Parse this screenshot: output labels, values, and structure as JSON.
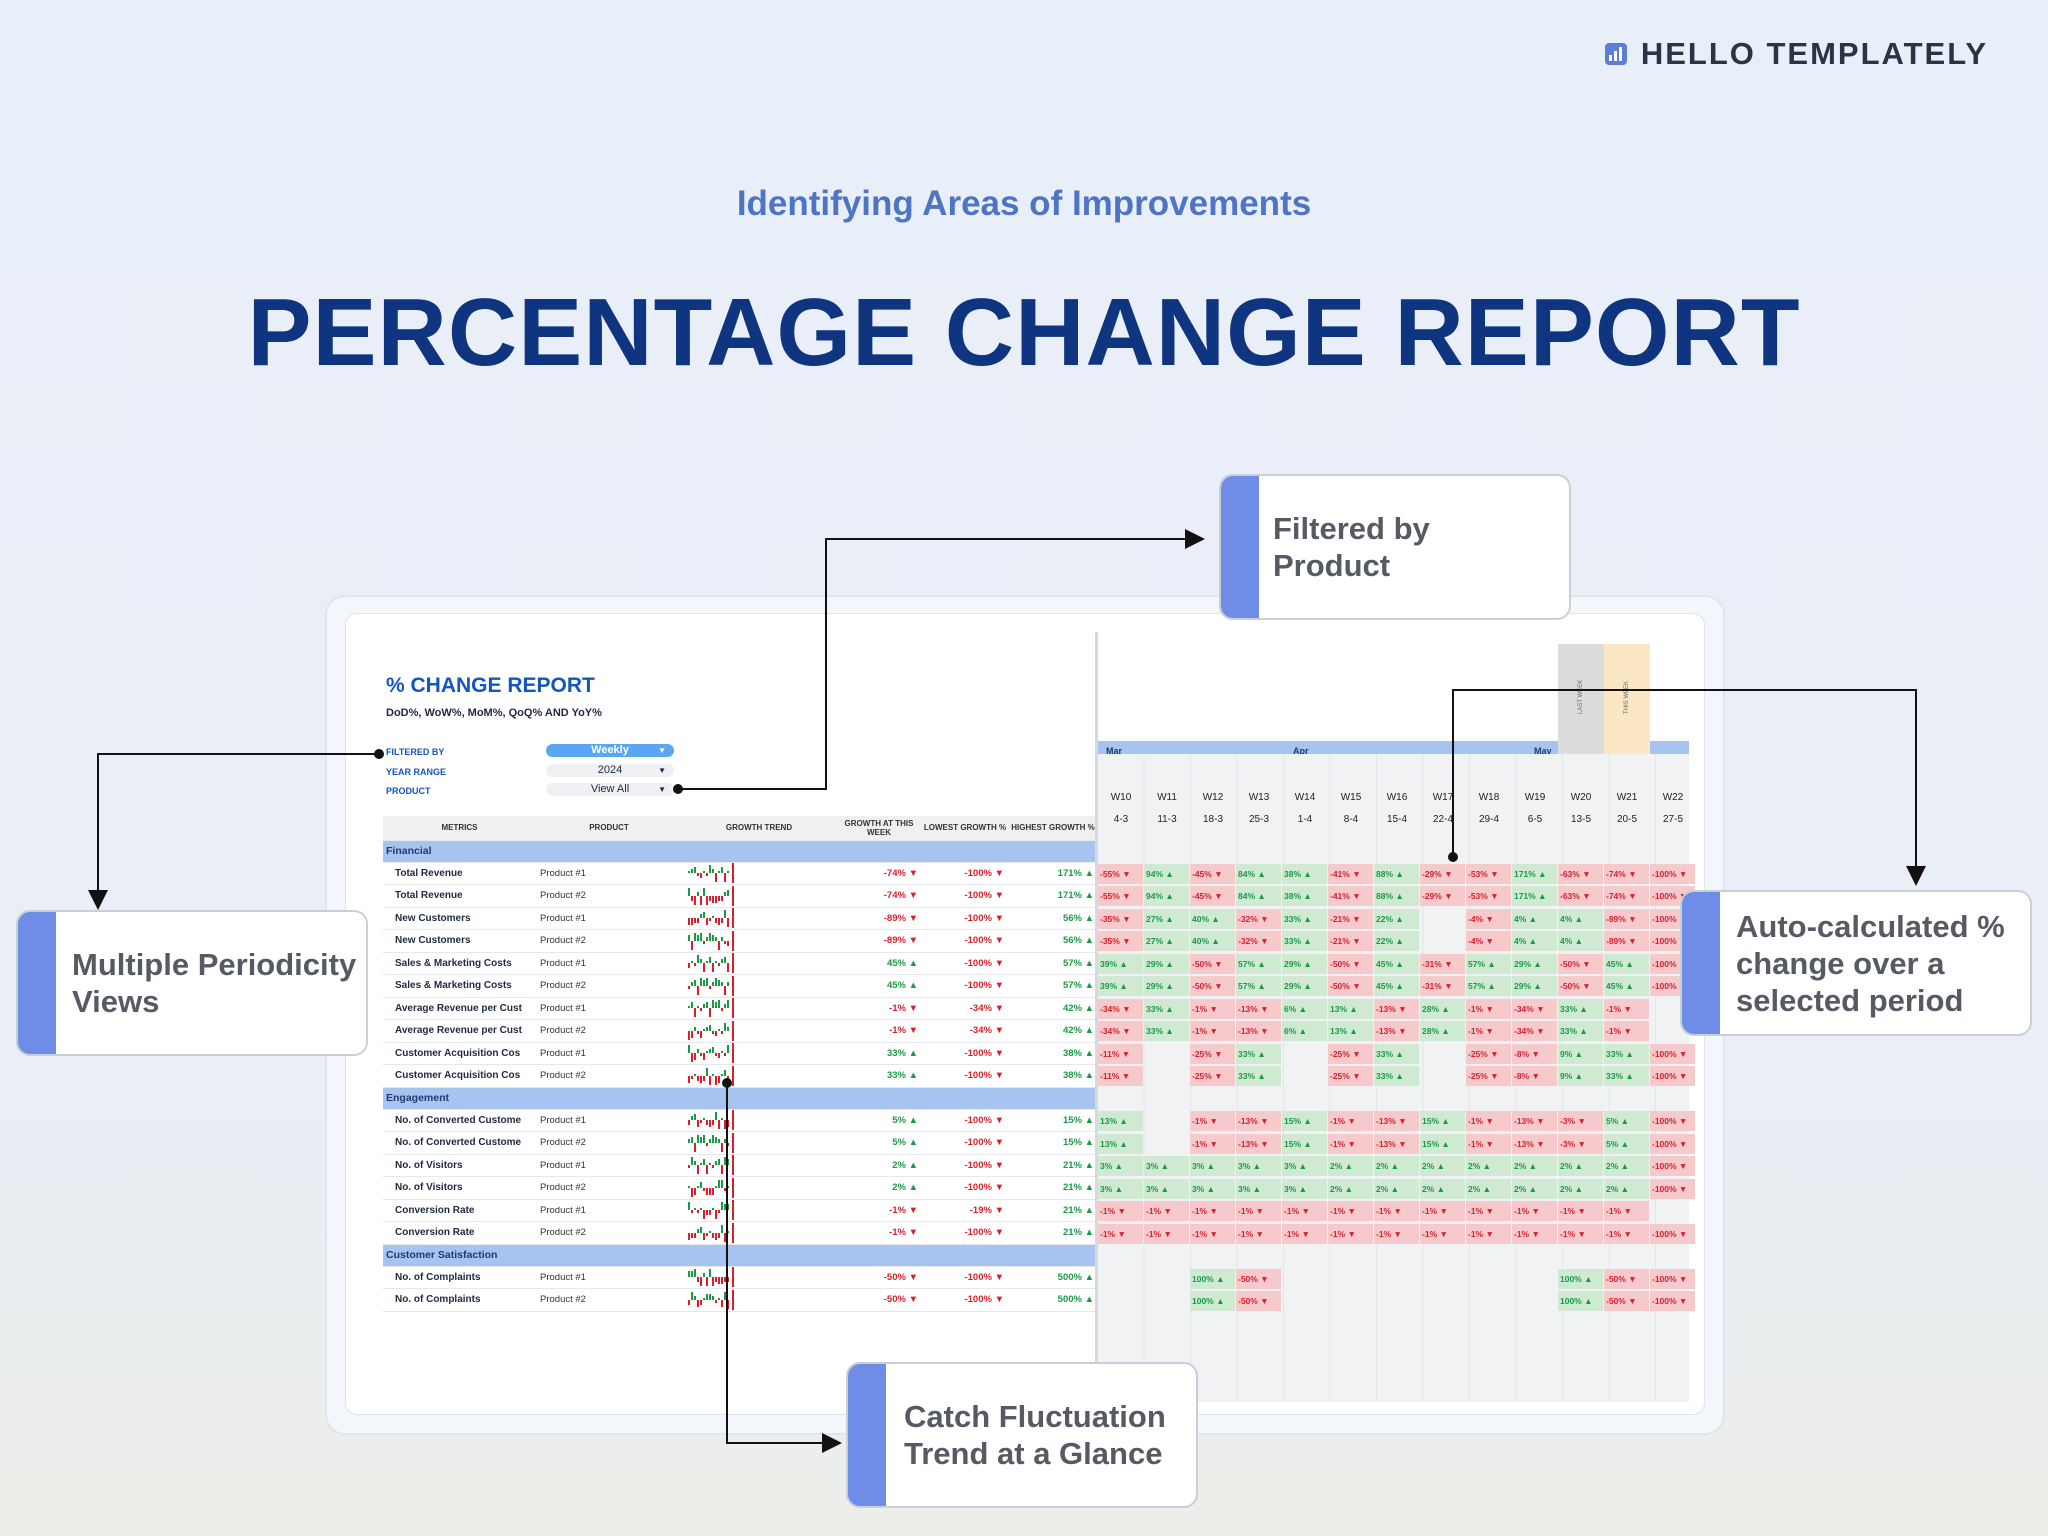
{
  "brand": {
    "name": "HELLO TEMPLATELY",
    "icon": "bar-chart-icon"
  },
  "header": {
    "kicker": "Identifying Areas of Improvements",
    "title": "PERCENTAGE CHANGE REPORT"
  },
  "report": {
    "title": "% CHANGE REPORT",
    "subtitle": "DoD%, WoW%, MoM%, QoQ% AND YoY%",
    "filters": [
      {
        "label": "FILTERED BY",
        "value": "Weekly"
      },
      {
        "label": "YEAR RANGE",
        "value": "2024"
      },
      {
        "label": "PRODUCT",
        "value": "View All"
      }
    ],
    "columns": [
      "METRICS",
      "PRODUCT",
      "GROWTH TREND",
      "GROWTH AT THIS WEEK",
      "LOWEST GROWTH %",
      "HIGHEST GROWTH %"
    ],
    "sections": [
      {
        "name": "Financial",
        "rows": [
          {
            "metric": "Total Revenue",
            "product": "Product #1",
            "now": "-74% ▼",
            "now_dir": "dn",
            "low": "-100% ▼",
            "high": "171% ▲"
          },
          {
            "metric": "Total Revenue",
            "product": "Product #2",
            "now": "-74% ▼",
            "now_dir": "dn",
            "low": "-100% ▼",
            "high": "171% ▲"
          },
          {
            "metric": "New Customers",
            "product": "Product #1",
            "now": "-89% ▼",
            "now_dir": "dn",
            "low": "-100% ▼",
            "high": "56% ▲"
          },
          {
            "metric": "New Customers",
            "product": "Product #2",
            "now": "-89% ▼",
            "now_dir": "dn",
            "low": "-100% ▼",
            "high": "56% ▲"
          },
          {
            "metric": "Sales & Marketing Costs",
            "product": "Product #1",
            "now": "45% ▲",
            "now_dir": "up",
            "low": "-100% ▼",
            "high": "57% ▲"
          },
          {
            "metric": "Sales & Marketing Costs",
            "product": "Product #2",
            "now": "45% ▲",
            "now_dir": "up",
            "low": "-100% ▼",
            "high": "57% ▲"
          },
          {
            "metric": "Average Revenue per Cust",
            "product": "Product #1",
            "now": "-1% ▼",
            "now_dir": "dn",
            "low": "-34% ▼",
            "high": "42% ▲"
          },
          {
            "metric": "Average Revenue per Cust",
            "product": "Product #2",
            "now": "-1% ▼",
            "now_dir": "dn",
            "low": "-34% ▼",
            "high": "42% ▲"
          },
          {
            "metric": "Customer Acquisition Cos",
            "product": "Product #1",
            "now": "33% ▲",
            "now_dir": "up",
            "low": "-100% ▼",
            "high": "38% ▲"
          },
          {
            "metric": "Customer Acquisition Cos",
            "product": "Product #2",
            "now": "33% ▲",
            "now_dir": "up",
            "low": "-100% ▼",
            "high": "38% ▲"
          }
        ]
      },
      {
        "name": "Engagement",
        "rows": [
          {
            "metric": "No. of Converted Custome",
            "product": "Product #1",
            "now": "5% ▲",
            "now_dir": "up",
            "low": "-100% ▼",
            "high": "15% ▲"
          },
          {
            "metric": "No. of Converted Custome",
            "product": "Product #2",
            "now": "5% ▲",
            "now_dir": "up",
            "low": "-100% ▼",
            "high": "15% ▲"
          },
          {
            "metric": "No. of Visitors",
            "product": "Product #1",
            "now": "2% ▲",
            "now_dir": "up",
            "low": "-100% ▼",
            "high": "21% ▲"
          },
          {
            "metric": "No. of Visitors",
            "product": "Product #2",
            "now": "2% ▲",
            "now_dir": "up",
            "low": "-100% ▼",
            "high": "21% ▲"
          },
          {
            "metric": "Conversion Rate",
            "product": "Product #1",
            "now": "-1% ▼",
            "now_dir": "dn",
            "low": "-19% ▼",
            "high": "21% ▲"
          },
          {
            "metric": "Conversion Rate",
            "product": "Product #2",
            "now": "-1% ▼",
            "now_dir": "dn",
            "low": "-100% ▼",
            "high": "21% ▲"
          }
        ]
      },
      {
        "name": "Customer Satisfaction",
        "rows": [
          {
            "metric": "No. of Complaints",
            "product": "Product #1",
            "now": "-50% ▼",
            "now_dir": "dn",
            "low": "-100% ▼",
            "high": "500% ▲"
          },
          {
            "metric": "No. of Complaints",
            "product": "Product #2",
            "now": "-50% ▼",
            "now_dir": "dn",
            "low": "-100% ▼",
            "high": "500% ▲"
          }
        ]
      }
    ],
    "months": [
      "Mar",
      "Apr",
      "May"
    ],
    "weeks": [
      "W10",
      "W11",
      "W12",
      "W13",
      "W14",
      "W15",
      "W16",
      "W17",
      "W18",
      "W19",
      "W20",
      "W21",
      "W22"
    ],
    "dates": [
      "4-3",
      "11-3",
      "18-3",
      "25-3",
      "1-4",
      "8-4",
      "15-4",
      "22-4",
      "29-4",
      "6-5",
      "13-5",
      "20-5",
      "27-5"
    ],
    "week_markers": {
      "last": "LAST WEEK",
      "this": "THIS WEEK"
    },
    "grid_rows": [
      [
        "-55% ▼",
        "94% ▲",
        "-45% ▼",
        "84% ▲",
        "38% ▲",
        "-41% ▼",
        "88% ▲",
        "-29% ▼",
        "-53% ▼",
        "171% ▲",
        "-63% ▼",
        "-74% ▼",
        "-100% ▼"
      ],
      [
        "-55% ▼",
        "94% ▲",
        "-45% ▼",
        "84% ▲",
        "38% ▲",
        "-41% ▼",
        "88% ▲",
        "-29% ▼",
        "-53% ▼",
        "171% ▲",
        "-63% ▼",
        "-74% ▼",
        "-100% ▼"
      ],
      [
        "-35% ▼",
        "27% ▲",
        "40% ▲",
        "-32% ▼",
        "33% ▲",
        "-21% ▼",
        "22% ▲",
        "",
        "-4% ▼",
        "4% ▲",
        "4% ▲",
        "-89% ▼",
        "-100% ▼"
      ],
      [
        "-35% ▼",
        "27% ▲",
        "40% ▲",
        "-32% ▼",
        "33% ▲",
        "-21% ▼",
        "22% ▲",
        "",
        "-4% ▼",
        "4% ▲",
        "4% ▲",
        "-89% ▼",
        "-100% ▼"
      ],
      [
        "39% ▲",
        "29% ▲",
        "-50% ▼",
        "57% ▲",
        "29% ▲",
        "-50% ▼",
        "45% ▲",
        "-31% ▼",
        "57% ▲",
        "29% ▲",
        "-50% ▼",
        "45% ▲",
        "-100% ▼"
      ],
      [
        "39% ▲",
        "29% ▲",
        "-50% ▼",
        "57% ▲",
        "29% ▲",
        "-50% ▼",
        "45% ▲",
        "-31% ▼",
        "57% ▲",
        "29% ▲",
        "-50% ▼",
        "45% ▲",
        "-100% ▼"
      ],
      [
        "-34% ▼",
        "33% ▲",
        "-1% ▼",
        "-13% ▼",
        "6% ▲",
        "13% ▲",
        "-13% ▼",
        "28% ▲",
        "-1% ▼",
        "-34% ▼",
        "33% ▲",
        "-1% ▼",
        ""
      ],
      [
        "-34% ▼",
        "33% ▲",
        "-1% ▼",
        "-13% ▼",
        "6% ▲",
        "13% ▲",
        "-13% ▼",
        "28% ▲",
        "-1% ▼",
        "-34% ▼",
        "33% ▲",
        "-1% ▼",
        ""
      ],
      [
        "-11% ▼",
        "",
        "-25% ▼",
        "33% ▲",
        "",
        "-25% ▼",
        "33% ▲",
        "",
        "-25% ▼",
        "-8% ▼",
        "9% ▲",
        "33% ▲",
        "-100% ▼"
      ],
      [
        "-11% ▼",
        "",
        "-25% ▼",
        "33% ▲",
        "",
        "-25% ▼",
        "33% ▲",
        "",
        "-25% ▼",
        "-8% ▼",
        "9% ▲",
        "33% ▲",
        "-100% ▼"
      ],
      [
        "13% ▲",
        "",
        "-1% ▼",
        "-13% ▼",
        "15% ▲",
        "-1% ▼",
        "-13% ▼",
        "15% ▲",
        "-1% ▼",
        "-13% ▼",
        "-3% ▼",
        "5% ▲",
        "-100% ▼"
      ],
      [
        "13% ▲",
        "",
        "-1% ▼",
        "-13% ▼",
        "15% ▲",
        "-1% ▼",
        "-13% ▼",
        "15% ▲",
        "-1% ▼",
        "-13% ▼",
        "-3% ▼",
        "5% ▲",
        "-100% ▼"
      ],
      [
        "3% ▲",
        "3% ▲",
        "3% ▲",
        "3% ▲",
        "3% ▲",
        "2% ▲",
        "2% ▲",
        "2% ▲",
        "2% ▲",
        "2% ▲",
        "2% ▲",
        "2% ▲",
        "-100% ▼"
      ],
      [
        "3% ▲",
        "3% ▲",
        "3% ▲",
        "3% ▲",
        "3% ▲",
        "2% ▲",
        "2% ▲",
        "2% ▲",
        "2% ▲",
        "2% ▲",
        "2% ▲",
        "2% ▲",
        "-100% ▼"
      ],
      [
        "-1% ▼",
        "-1% ▼",
        "-1% ▼",
        "-1% ▼",
        "-1% ▼",
        "-1% ▼",
        "-1% ▼",
        "-1% ▼",
        "-1% ▼",
        "-1% ▼",
        "-1% ▼",
        "-1% ▼",
        ""
      ],
      [
        "-1% ▼",
        "-1% ▼",
        "-1% ▼",
        "-1% ▼",
        "-1% ▼",
        "-1% ▼",
        "-1% ▼",
        "-1% ▼",
        "-1% ▼",
        "-1% ▼",
        "-1% ▼",
        "-1% ▼",
        "-100% ▼"
      ],
      [
        "",
        "",
        "100% ▲",
        "-50% ▼",
        "",
        "",
        "",
        "",
        "",
        "",
        "100% ▲",
        "-50% ▼",
        "-100% ▼"
      ],
      [
        "",
        "",
        "100% ▲",
        "-50% ▼",
        "",
        "",
        "",
        "",
        "",
        "",
        "100% ▲",
        "-50% ▼",
        "-100% ▼"
      ]
    ]
  },
  "callouts": {
    "filtered": "Filtered by Product",
    "periodicity": "Multiple Periodicity Views",
    "auto": "Auto-calculated % change over a selected period",
    "trend": "Catch Fluctuation Trend at a Glance"
  },
  "colors": {
    "accent": "#6f8ce6",
    "title": "#0f3480",
    "kicker": "#4e74c6",
    "up": "#1a9a47",
    "down": "#d6202c"
  }
}
